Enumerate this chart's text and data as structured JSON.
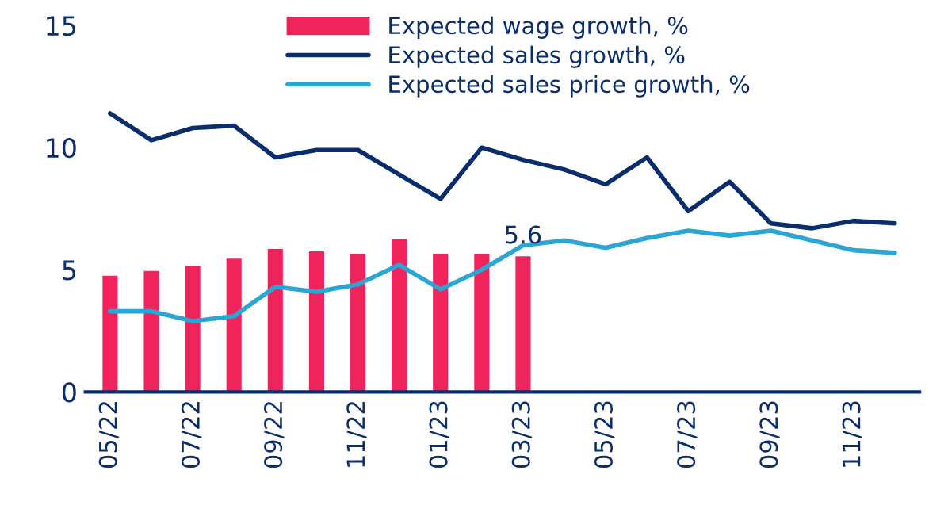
{
  "chart_data": {
    "type": "bar",
    "categories": [
      "05/22",
      null,
      "07/22",
      null,
      "09/22",
      null,
      "11/22",
      null,
      "01/23",
      null,
      "03/23",
      null,
      "05/23",
      null,
      "07/23",
      null,
      "09/23",
      null,
      "11/23",
      null
    ],
    "series": [
      {
        "name": "Expected wage growth, %",
        "color": "#f0245a",
        "values": [
          4.8,
          5.0,
          5.2,
          5.5,
          5.9,
          5.8,
          5.7,
          6.3,
          5.7,
          5.7,
          5.6,
          null,
          null,
          null,
          null,
          null,
          null,
          null,
          null,
          null
        ],
        "value_labels": [
          null,
          null,
          null,
          null,
          null,
          null,
          null,
          null,
          null,
          null,
          "5.6",
          null,
          null,
          null,
          null,
          null,
          null,
          null,
          null,
          null
        ]
      },
      {
        "name": "Expected sales growth, %",
        "type": "line",
        "color": "#0a2d6e",
        "values": [
          11.4,
          10.3,
          10.8,
          10.9,
          9.6,
          9.9,
          9.9,
          8.9,
          7.9,
          10.0,
          9.5,
          9.1,
          8.5,
          9.6,
          7.4,
          8.6,
          6.9,
          6.7,
          7.0,
          6.9
        ]
      },
      {
        "name": "Expected sales price growth, %",
        "type": "line",
        "color": "#2aa5d4",
        "values": [
          3.3,
          3.3,
          2.9,
          3.1,
          4.3,
          4.1,
          4.4,
          5.2,
          4.2,
          5.0,
          6.0,
          6.2,
          5.9,
          6.3,
          6.6,
          6.4,
          6.6,
          6.2,
          5.8,
          5.7
        ]
      }
    ],
    "ylim": [
      0,
      15
    ],
    "yticks": [
      0,
      5,
      10,
      15
    ],
    "grid": false,
    "legend": "top"
  }
}
